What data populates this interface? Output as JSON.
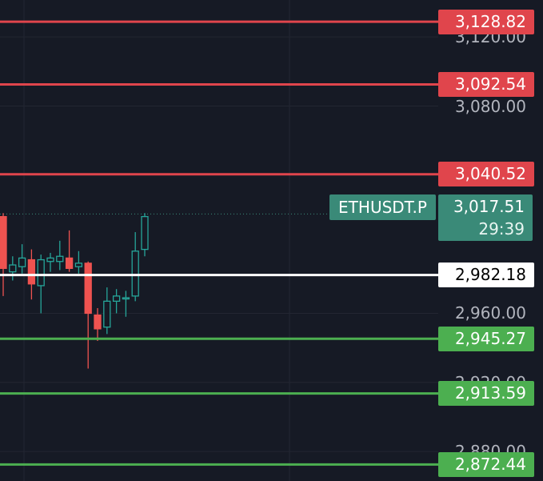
{
  "chart_data": {
    "type": "candlestick",
    "symbol": "ETHUSDT.P",
    "last_price": "3,017.51",
    "countdown": "29:39",
    "y_axis": {
      "ticks": [
        "3,120.00",
        "3,080.00",
        "2,960.00",
        "2,920.00",
        "2,880.00"
      ],
      "tick_values": [
        3120,
        3080,
        2960,
        2920,
        2880
      ]
    },
    "ylim": [
      2862.9,
      3141.4
    ],
    "grid": true,
    "horizontal_levels": [
      {
        "label": "3,128.82",
        "value": 3128.82,
        "color": "#e0454c",
        "text_color": "#ffffff"
      },
      {
        "label": "3,092.54",
        "value": 3092.54,
        "color": "#e0454c",
        "text_color": "#ffffff"
      },
      {
        "label": "3,040.52",
        "value": 3040.52,
        "color": "#e0454c",
        "text_color": "#ffffff"
      },
      {
        "label": "2,982.18",
        "value": 2982.18,
        "color": "#ffffff",
        "text_color": "#000000"
      },
      {
        "label": "2,945.27",
        "value": 2945.27,
        "color": "#4caf50",
        "text_color": "#ffffff"
      },
      {
        "label": "2,913.59",
        "value": 2913.59,
        "color": "#4caf50",
        "text_color": "#ffffff"
      },
      {
        "label": "2,872.44",
        "value": 2872.44,
        "color": "#4caf50",
        "text_color": "#ffffff"
      }
    ],
    "candles": [
      {
        "o": 3016,
        "h": 3018,
        "l": 2970,
        "c": 2986
      },
      {
        "o": 2984,
        "h": 2993,
        "l": 2979,
        "c": 2988
      },
      {
        "o": 2987,
        "h": 3000,
        "l": 2983,
        "c": 2992
      },
      {
        "o": 2991,
        "h": 2997,
        "l": 2968,
        "c": 2977
      },
      {
        "o": 2976,
        "h": 2994,
        "l": 2960,
        "c": 2991
      },
      {
        "o": 2990,
        "h": 2995,
        "l": 2984,
        "c": 2992
      },
      {
        "o": 2990,
        "h": 3002,
        "l": 2985,
        "c": 2993
      },
      {
        "o": 2992,
        "h": 3008,
        "l": 2984,
        "c": 2986
      },
      {
        "o": 2987,
        "h": 2996,
        "l": 2983,
        "c": 2989
      },
      {
        "o": 2989,
        "h": 2990,
        "l": 2928,
        "c": 2960
      },
      {
        "o": 2959,
        "h": 2963,
        "l": 2944,
        "c": 2951
      },
      {
        "o": 2952,
        "h": 2975,
        "l": 2948,
        "c": 2967
      },
      {
        "o": 2967,
        "h": 2974,
        "l": 2960,
        "c": 2970
      },
      {
        "o": 2969,
        "h": 2973,
        "l": 2958,
        "c": 2969
      },
      {
        "o": 2970,
        "h": 3007,
        "l": 2967,
        "c": 2996
      },
      {
        "o": 2997,
        "h": 3018,
        "l": 2993,
        "c": 3016
      }
    ],
    "colors": {
      "up": "#26a69a",
      "down": "#ef5350",
      "background": "#161a25",
      "last_price_tag": "#3a8a78"
    }
  }
}
